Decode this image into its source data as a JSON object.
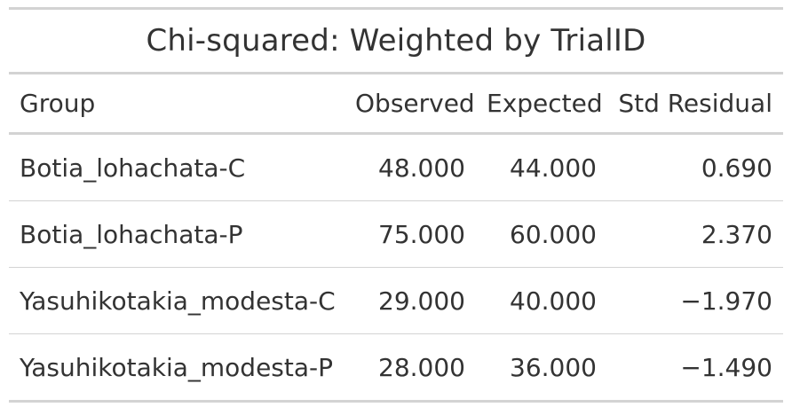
{
  "table": {
    "title": "Chi-squared: Weighted by TrialID",
    "columns": [
      "Group",
      "Observed",
      "Expected",
      "Std Residual"
    ],
    "rows": [
      {
        "group": "Botia_lohachata-C",
        "observed": "48.000",
        "expected": "44.000",
        "std_residual": "0.690"
      },
      {
        "group": "Botia_lohachata-P",
        "observed": "75.000",
        "expected": "60.000",
        "std_residual": "2.370"
      },
      {
        "group": "Yasuhikotakia_modesta-C",
        "observed": "29.000",
        "expected": "40.000",
        "std_residual": "−1.970"
      },
      {
        "group": "Yasuhikotakia_modesta-P",
        "observed": "28.000",
        "expected": "36.000",
        "std_residual": "−1.490"
      }
    ]
  },
  "colors": {
    "text": "#333333",
    "rule": "#d3d3d3",
    "background": "#ffffff"
  }
}
